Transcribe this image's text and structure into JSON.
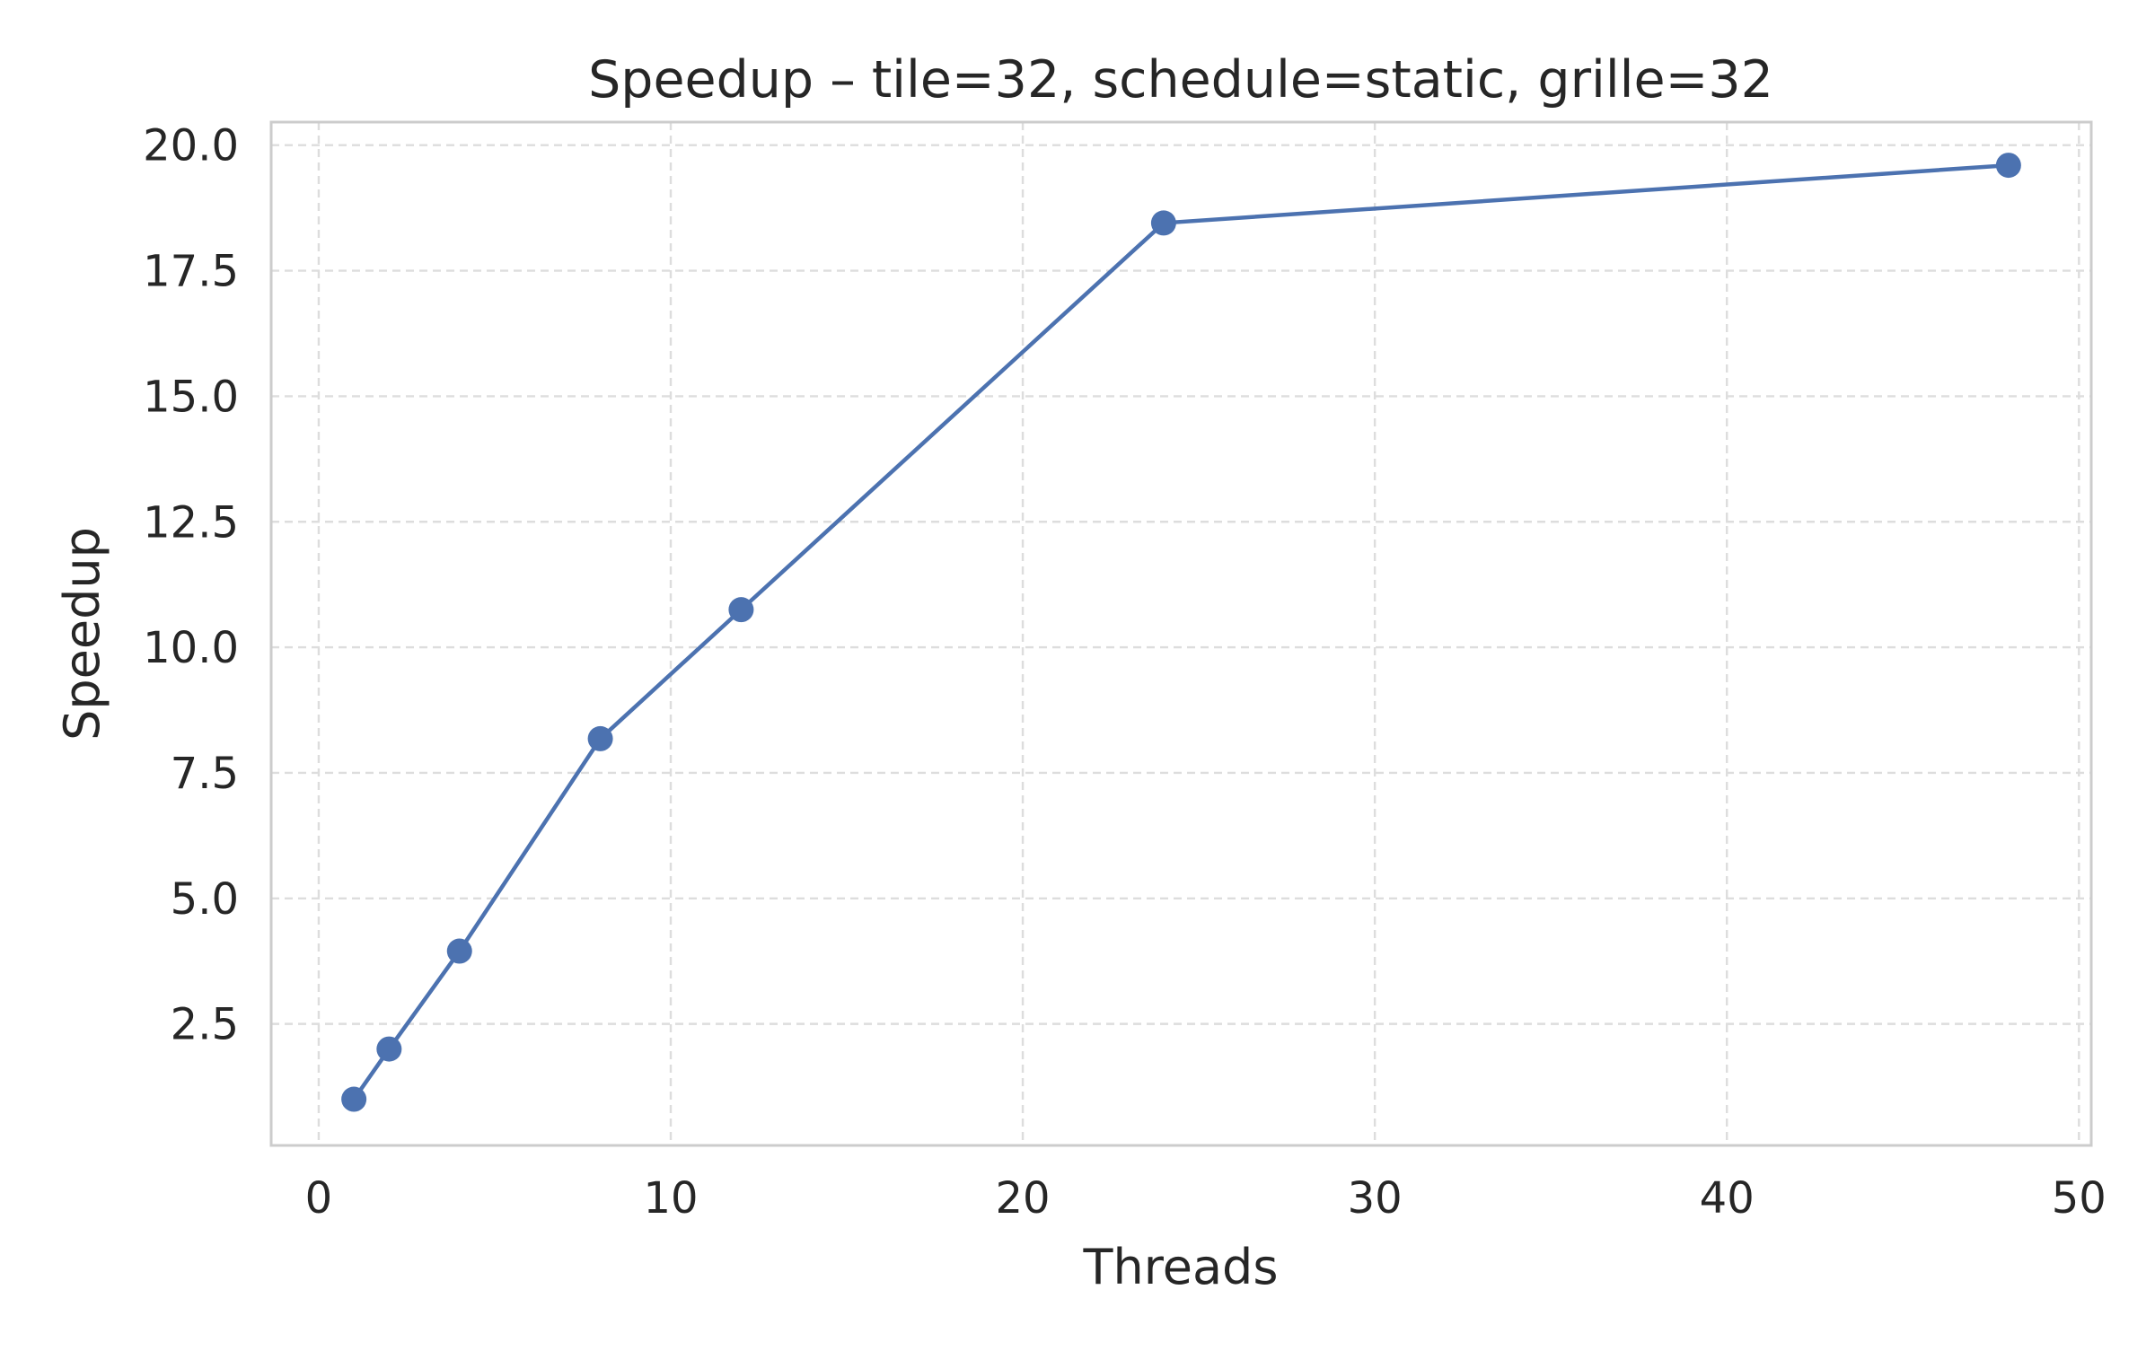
{
  "chart_data": {
    "type": "line",
    "title": "Speedup – tile=32, schedule=static, grille=32",
    "xlabel": "Threads",
    "ylabel": "Speedup",
    "xlim": [
      -1.35,
      50.35
    ],
    "ylim": [
      0.08,
      20.46
    ],
    "xticks": [
      0,
      10,
      20,
      30,
      40,
      50
    ],
    "xtick_labels": [
      "0",
      "10",
      "20",
      "30",
      "40",
      "50"
    ],
    "yticks": [
      2.5,
      5.0,
      7.5,
      10.0,
      12.5,
      15.0,
      17.5,
      20.0
    ],
    "ytick_labels": [
      "2.5",
      "5.0",
      "7.5",
      "10.0",
      "12.5",
      "15.0",
      "17.5",
      "20.0"
    ],
    "grid": true,
    "legend": "none",
    "series": [
      {
        "color": "#4c72b0",
        "marker": "circle",
        "x": [
          1,
          2,
          4,
          8,
          12,
          24,
          48
        ],
        "y": [
          1.0,
          2.0,
          3.95,
          8.18,
          10.75,
          18.45,
          19.6
        ]
      }
    ]
  }
}
